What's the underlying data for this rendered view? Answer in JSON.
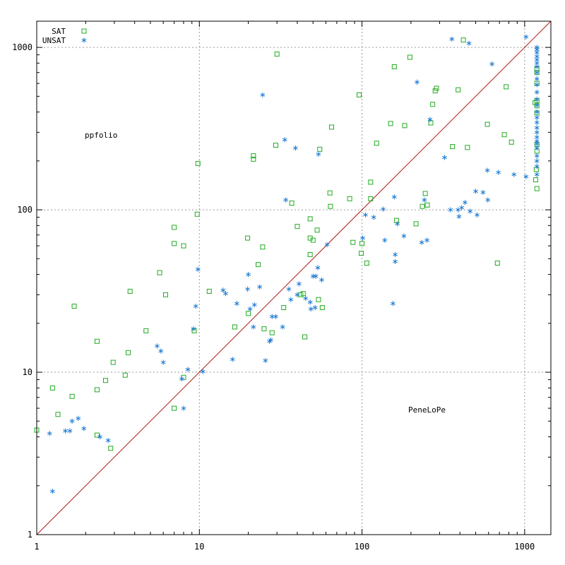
{
  "chart_data": {
    "type": "scatter",
    "title": "",
    "xlabel": "",
    "ylabel": "",
    "xscale": "log",
    "yscale": "log",
    "xlim": [
      1,
      1450
    ],
    "ylim": [
      1,
      1450
    ],
    "xticks": [
      1,
      10,
      100,
      1000
    ],
    "yticks": [
      1,
      10,
      100,
      1000
    ],
    "grid": true,
    "legend_position": "top-left",
    "diagonal": true,
    "region_labels": {
      "upper_left": "ppfolio",
      "lower_right": "PeneLoPe"
    },
    "series": [
      {
        "name": "SAT",
        "marker": "square",
        "color": "#22aa22",
        "points": [
          [
            1.0,
            4.4
          ],
          [
            1.25,
            8.0
          ],
          [
            1.35,
            5.5
          ],
          [
            1.65,
            7.1
          ],
          [
            1.7,
            25.5
          ],
          [
            2.35,
            15.5
          ],
          [
            2.35,
            7.8
          ],
          [
            2.35,
            4.1
          ],
          [
            2.65,
            8.9
          ],
          [
            2.95,
            11.5
          ],
          [
            2.85,
            3.4
          ],
          [
            3.5,
            9.6
          ],
          [
            3.65,
            13.2
          ],
          [
            3.75,
            31.5
          ],
          [
            4.7,
            18.0
          ],
          [
            5.7,
            41.0
          ],
          [
            6.2,
            30.0
          ],
          [
            7.0,
            6.0
          ],
          [
            7.0,
            62.0
          ],
          [
            7.0,
            78.0
          ],
          [
            8.0,
            60.0
          ],
          [
            8.0,
            9.3
          ],
          [
            9.3,
            18.0
          ],
          [
            9.7,
            94.0
          ],
          [
            9.8,
            193.0
          ],
          [
            11.5,
            31.5
          ],
          [
            16.5,
            19.0
          ],
          [
            19.8,
            67.0
          ],
          [
            20.0,
            23.0
          ],
          [
            21.5,
            205.0
          ],
          [
            21.5,
            215.0
          ],
          [
            23.0,
            46.0
          ],
          [
            24.5,
            59.0
          ],
          [
            25.0,
            18.5
          ],
          [
            28.0,
            17.5
          ],
          [
            29.5,
            250.0
          ],
          [
            30.0,
            910.0
          ],
          [
            33.0,
            25.0
          ],
          [
            37.0,
            110.0
          ],
          [
            40.0,
            79.0
          ],
          [
            42.0,
            30.0
          ],
          [
            43.5,
            30.5
          ],
          [
            44.5,
            16.5
          ],
          [
            48.0,
            88.0
          ],
          [
            48.0,
            67.0
          ],
          [
            48.0,
            53.0
          ],
          [
            50.0,
            65.0
          ],
          [
            53.0,
            75.0
          ],
          [
            54.0,
            28.0
          ],
          [
            55.0,
            236.0
          ],
          [
            57.0,
            25.0
          ],
          [
            63.5,
            127.0
          ],
          [
            64.0,
            105.0
          ],
          [
            65.0,
            323.0
          ],
          [
            84.0,
            117.0
          ],
          [
            88.0,
            63.0
          ],
          [
            96.0,
            510.0
          ],
          [
            99.0,
            54.0
          ],
          [
            100.0,
            62.0
          ],
          [
            107.0,
            47.0
          ],
          [
            113.0,
            117.0
          ],
          [
            113.0,
            148.0
          ],
          [
            123.0,
            257.0
          ],
          [
            150.0,
            340.0
          ],
          [
            158.0,
            760.0
          ],
          [
            163.0,
            86.0
          ],
          [
            183.0,
            330.0
          ],
          [
            197.0,
            870.0
          ],
          [
            215.0,
            82.0
          ],
          [
            235.0,
            105.0
          ],
          [
            245.0,
            126.0
          ],
          [
            252.0,
            107.0
          ],
          [
            265.0,
            343.0
          ],
          [
            272.0,
            446.0
          ],
          [
            282.0,
            540.0
          ],
          [
            287.0,
            560.0
          ],
          [
            360.0,
            245.0
          ],
          [
            390.0,
            548.0
          ],
          [
            420.0,
            1110.0
          ],
          [
            445.0,
            242.0
          ],
          [
            590.0,
            336.0
          ],
          [
            680.0,
            47.0
          ],
          [
            750.0,
            290.0
          ],
          [
            770.0,
            572.0
          ],
          [
            830.0,
            261.0
          ],
          [
            1160.0,
            457.0
          ],
          [
            1170.0,
            153.0
          ],
          [
            1180.0,
            177.0
          ],
          [
            1190.0,
            135.0
          ],
          [
            1190.0,
            470.0
          ],
          [
            1190.0,
            395.0
          ],
          [
            1190.0,
            437.0
          ],
          [
            1190.0,
            600.0
          ],
          [
            1190.0,
            740.0
          ],
          [
            1190.0,
            700.0
          ],
          [
            1190.0,
            253.0
          ],
          [
            1190.0,
            230.0
          ]
        ]
      },
      {
        "name": "UNSAT",
        "marker": "asterisk",
        "color": "#1a7ad4",
        "points": [
          [
            1.2,
            4.2
          ],
          [
            1.25,
            1.85
          ],
          [
            1.5,
            4.35
          ],
          [
            1.6,
            4.35
          ],
          [
            1.65,
            5.0
          ],
          [
            1.8,
            5.2
          ],
          [
            1.95,
            4.5
          ],
          [
            2.45,
            4.0
          ],
          [
            2.75,
            3.8
          ],
          [
            5.5,
            14.5
          ],
          [
            5.8,
            13.5
          ],
          [
            6.0,
            11.5
          ],
          [
            7.8,
            9.1
          ],
          [
            8.0,
            6.0
          ],
          [
            8.5,
            10.4
          ],
          [
            9.2,
            18.5
          ],
          [
            9.5,
            25.5
          ],
          [
            9.8,
            43.0
          ],
          [
            10.5,
            10.1
          ],
          [
            14.0,
            32.0
          ],
          [
            14.5,
            30.5
          ],
          [
            16.0,
            12.0
          ],
          [
            17.0,
            26.5
          ],
          [
            19.8,
            32.5
          ],
          [
            20.0,
            40.0
          ],
          [
            20.5,
            24.5
          ],
          [
            21.5,
            19.0
          ],
          [
            21.8,
            26.0
          ],
          [
            23.5,
            33.5
          ],
          [
            24.5,
            510.0
          ],
          [
            25.5,
            11.8
          ],
          [
            27.0,
            15.5
          ],
          [
            27.5,
            15.8
          ],
          [
            28.0,
            22.0
          ],
          [
            29.5,
            22.0
          ],
          [
            32.5,
            19.0
          ],
          [
            33.5,
            270.0
          ],
          [
            34.0,
            115.0
          ],
          [
            35.5,
            32.5
          ],
          [
            36.5,
            28.0
          ],
          [
            39.0,
            240.0
          ],
          [
            40.0,
            30.0
          ],
          [
            41.0,
            35.0
          ],
          [
            45.0,
            28.5
          ],
          [
            48.0,
            27.0
          ],
          [
            48.5,
            24.5
          ],
          [
            50.0,
            39.0
          ],
          [
            51.5,
            25.0
          ],
          [
            52.0,
            39.0
          ],
          [
            53.5,
            44.0
          ],
          [
            54.0,
            220.0
          ],
          [
            56.5,
            37.0
          ],
          [
            61.0,
            61.0
          ],
          [
            101.0,
            67.0
          ],
          [
            105.0,
            93.0
          ],
          [
            118.0,
            90.0
          ],
          [
            135.0,
            101.0
          ],
          [
            138.0,
            65.0
          ],
          [
            155.0,
            26.5
          ],
          [
            158.0,
            120.0
          ],
          [
            160.0,
            48.0
          ],
          [
            160.0,
            53.0
          ],
          [
            165.0,
            82.0
          ],
          [
            181.0,
            69.0
          ],
          [
            218.0,
            611.0
          ],
          [
            233.0,
            63.0
          ],
          [
            242.0,
            115.0
          ],
          [
            251.0,
            65.0
          ],
          [
            262.0,
            360.0
          ],
          [
            322.0,
            210.0
          ],
          [
            350.0,
            100.0
          ],
          [
            357.0,
            1125.0
          ],
          [
            390.0,
            100.0
          ],
          [
            395.0,
            91.0
          ],
          [
            410.0,
            103.0
          ],
          [
            430.0,
            111.0
          ],
          [
            455.0,
            1060.0
          ],
          [
            462.0,
            98.0
          ],
          [
            500.0,
            130.0
          ],
          [
            510.0,
            93.0
          ],
          [
            555.0,
            128.0
          ],
          [
            590.0,
            175.0
          ],
          [
            594.0,
            115.0
          ],
          [
            630.0,
            790.0
          ],
          [
            690.0,
            170.0
          ],
          [
            860.0,
            165.0
          ],
          [
            1020.0,
            160.0
          ],
          [
            1020.0,
            1160.0
          ],
          [
            1190.0,
            1000.0
          ],
          [
            1190.0,
            970.0
          ],
          [
            1190.0,
            930.0
          ],
          [
            1190.0,
            880.0
          ],
          [
            1190.0,
            840.0
          ],
          [
            1190.0,
            800.0
          ],
          [
            1190.0,
            760.0
          ],
          [
            1190.0,
            700.0
          ],
          [
            1190.0,
            640.0
          ],
          [
            1190.0,
            590.0
          ],
          [
            1190.0,
            530.0
          ],
          [
            1190.0,
            480.0
          ],
          [
            1190.0,
            440.0
          ],
          [
            1190.0,
            400.0
          ],
          [
            1190.0,
            370.0
          ],
          [
            1190.0,
            345.0
          ],
          [
            1190.0,
            320.0
          ],
          [
            1190.0,
            300.0
          ],
          [
            1190.0,
            280.0
          ],
          [
            1190.0,
            265.0
          ],
          [
            1190.0,
            255.0
          ],
          [
            1190.0,
            240.0
          ],
          [
            1190.0,
            215.0
          ],
          [
            1190.0,
            200.0
          ],
          [
            1190.0,
            185.0
          ],
          [
            1190.0,
            165.0
          ]
        ]
      }
    ]
  }
}
